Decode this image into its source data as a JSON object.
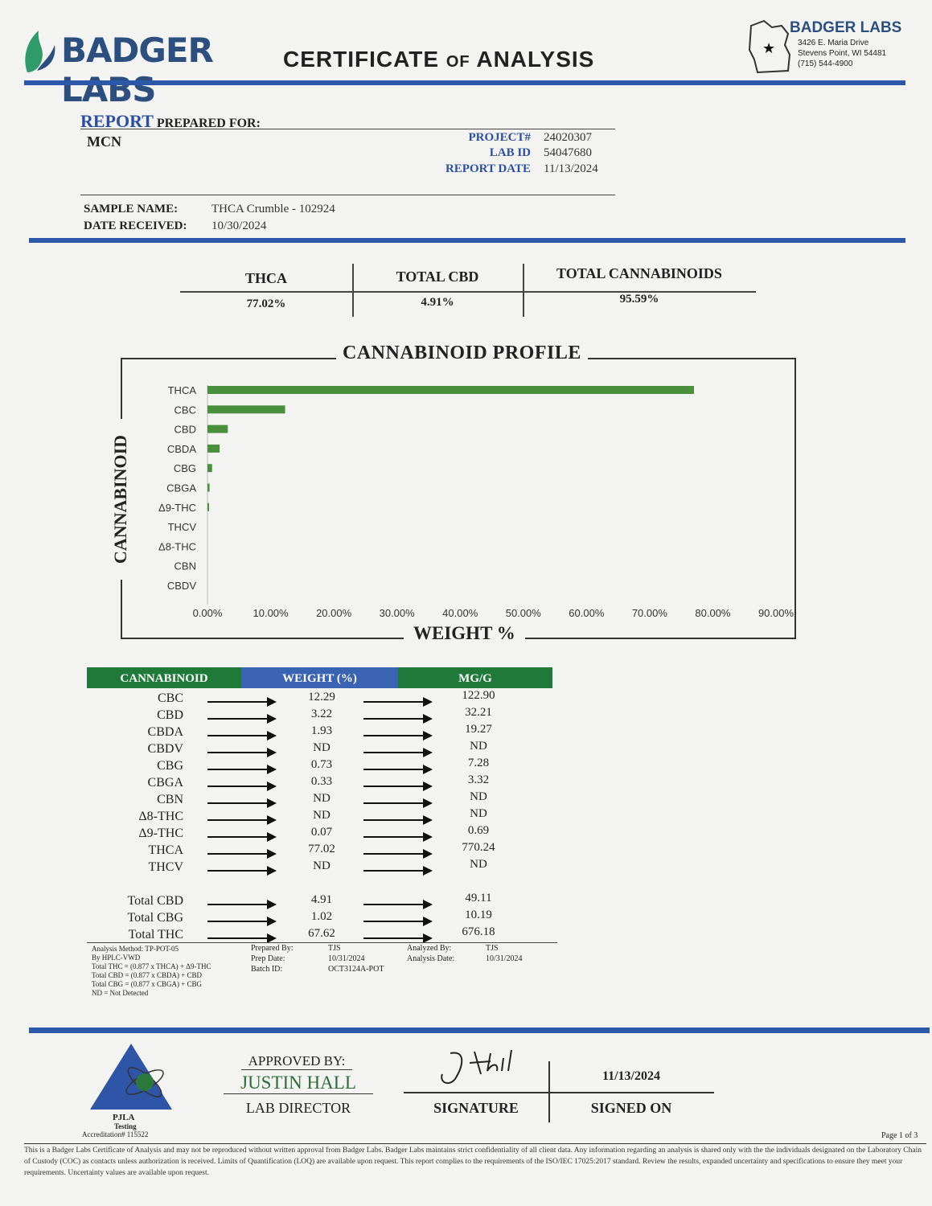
{
  "header": {
    "brand": "BADGER LABS",
    "title_main": "CERTIFICATE",
    "title_of": "OF",
    "title_end": "ANALYSIS",
    "lab_name": "BADGER LABS",
    "address1": "3426 E. Maria Drive",
    "address2": "Stevens Point, WI 54481",
    "phone": "(715) 544-4900"
  },
  "report": {
    "report_word": "REPORT",
    "prepared_for_label": "PREPARED FOR:",
    "client": "MCN",
    "project_label": "PROJECT#",
    "project": "24020307",
    "labid_label": "LAB ID",
    "labid": "54047680",
    "reportdate_label": "REPORT DATE",
    "reportdate": "11/13/2024",
    "sample_label": "SAMPLE NAME:",
    "sample": "THCA Crumble - 102924",
    "received_label": "DATE RECEIVED:",
    "received": "10/30/2024"
  },
  "summary": [
    {
      "label": "THCA",
      "value": "77.02%"
    },
    {
      "label": "TOTAL CBD",
      "value": "4.91%"
    },
    {
      "label": "TOTAL CANNABINOIDS",
      "value": "95.59%"
    }
  ],
  "chart_data": {
    "type": "bar",
    "orientation": "horizontal",
    "title": "CANNABINOID PROFILE",
    "xlabel": "WEIGHT %",
    "ylabel": "CANNABINOID",
    "categories": [
      "THCA",
      "CBC",
      "CBD",
      "CBDA",
      "CBG",
      "CBGA",
      "Δ9-THC",
      "THCV",
      "Δ8-THC",
      "CBN",
      "CBDV"
    ],
    "values": [
      77.02,
      12.29,
      3.22,
      1.93,
      0.73,
      0.33,
      0.07,
      0,
      0,
      0,
      0
    ],
    "xlim": [
      0,
      90
    ],
    "xticks": [
      "0.00%",
      "10.00%",
      "20.00%",
      "30.00%",
      "40.00%",
      "50.00%",
      "60.00%",
      "70.00%",
      "80.00%",
      "90.00%"
    ],
    "bar_color": "#4a8f3c",
    "grid": false
  },
  "table": {
    "headers": [
      "CANNABINOID",
      "WEIGHT (%)",
      "MG/G"
    ],
    "rows": [
      {
        "name": "CBC",
        "weight": "12.29",
        "mg": "122.90"
      },
      {
        "name": "CBD",
        "weight": "3.22",
        "mg": "32.21"
      },
      {
        "name": "CBDA",
        "weight": "1.93",
        "mg": "19.27"
      },
      {
        "name": "CBDV",
        "weight": "ND",
        "mg": "ND"
      },
      {
        "name": "CBG",
        "weight": "0.73",
        "mg": "7.28"
      },
      {
        "name": "CBGA",
        "weight": "0.33",
        "mg": "3.32"
      },
      {
        "name": "CBN",
        "weight": "ND",
        "mg": "ND"
      },
      {
        "name": "Δ8-THC",
        "weight": "ND",
        "mg": "ND"
      },
      {
        "name": "Δ9-THC",
        "weight": "0.07",
        "mg": "0.69"
      },
      {
        "name": "THCA",
        "weight": "77.02",
        "mg": "770.24"
      },
      {
        "name": "THCV",
        "weight": "ND",
        "mg": "ND"
      }
    ],
    "totals": [
      {
        "name": "Total CBD",
        "weight": "4.91",
        "mg": "49.11"
      },
      {
        "name": "Total CBG",
        "weight": "1.02",
        "mg": "10.19"
      },
      {
        "name": "Total THC",
        "weight": "67.62",
        "mg": "676.18"
      }
    ],
    "header_colors": [
      "#1f7a3a",
      "#3b63b3",
      "#1f7a3a"
    ]
  },
  "method": {
    "line1": "Analysis Method: TP-POT-05",
    "line2": "By HPLC-VWD",
    "line3": "Total THC = (0.877 x THCA) + Δ9-THC",
    "line4": "Total CBD = (0.877 x CBDA) + CBD",
    "line5": "Total CBG = (0.877 x CBGA) + CBG",
    "line6": "ND = Not Detected",
    "prepared_by_label": "Prepared By:",
    "prepared_by": "TJS",
    "prep_date_label": "Prep Date:",
    "prep_date": "10/31/2024",
    "batch_label": "Batch ID:",
    "batch": "OCT3124A-POT",
    "analyzed_by_label": "Analyzed By:",
    "analyzed_by": "TJS",
    "analysis_date_label": "Analysis Date:",
    "analysis_date": "10/31/2024"
  },
  "approval": {
    "approved_by_label": "APPROVED BY:",
    "name": "JUSTIN HALL",
    "role": "LAB DIRECTOR",
    "signature_label": "SIGNATURE",
    "signed_on_label": "SIGNED ON",
    "signed_date": "11/13/2024",
    "pjla": "PJLA",
    "pjla_sub": "Testing",
    "accreditation": "Accreditation# 115522",
    "page": "Page 1 of 3"
  },
  "disclaimer": "This is a Badger Labs Certificate of Analysis and may not be reproduced without written approval from Badger Labs. Badger Labs maintains strict confidentiality of all client data. Any information regarding an analysis is shared only with the the individuals designated on the Laboratory Chain of Custody (COC) as contacts unless authorization is received. Limits of Quantification (LOQ) are available upon request. This report complies to the requirements of the ISO/IEC 17025:2017 standard. Review the results, expanded uncertainty and specifications to ensure they meet your requirements. Uncertainty values are available upon request."
}
